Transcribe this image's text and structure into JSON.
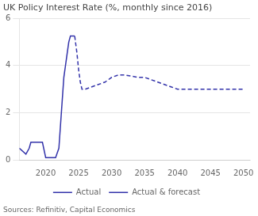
{
  "chart_data": {
    "type": "line",
    "title": "UK Policy Interest Rate (%, monthly since 2016)",
    "annotations": [
      "Sources: Refinitiv, Capital Economics"
    ],
    "xlim": [
      2016,
      2051
    ],
    "xticks": [
      2020,
      2025,
      2030,
      2035,
      2040,
      2045,
      2050
    ],
    "ylim": [
      0,
      6
    ],
    "yticks": [
      0,
      2,
      4,
      6
    ],
    "grid": "y",
    "legend": "bottom",
    "series": [
      {
        "name": "Actual",
        "color": "#3333aa",
        "line_style": "solid",
        "x": [
          2016.0,
          2017.0,
          2017.5,
          2017.75,
          2018.0,
          2018.5,
          2018.75,
          2019.0,
          2019.5,
          2020.0,
          2020.25,
          2021.0,
          2021.5,
          2022.0,
          2022.25,
          2022.5,
          2022.75,
          2023.0,
          2023.25,
          2023.5,
          2023.75,
          2024.0,
          2024.4
        ],
        "values": [
          0.5,
          0.25,
          0.5,
          0.75,
          0.75,
          0.75,
          0.75,
          0.75,
          0.75,
          0.1,
          0.1,
          0.1,
          0.1,
          0.5,
          1.5,
          2.5,
          3.5,
          4.0,
          4.5,
          5.0,
          5.25,
          5.25,
          5.25
        ]
      },
      {
        "name": "Actual & forecast",
        "color": "#3333aa",
        "line_style": "dashed",
        "x": [
          2024.4,
          2024.75,
          2025.0,
          2025.25,
          2025.5,
          2026.0,
          2027.0,
          2028.0,
          2029.0,
          2030.0,
          2031.0,
          2032.0,
          2033.0,
          2034.0,
          2035.0,
          2036.0,
          2037.0,
          2038.0,
          2039.0,
          2040.0,
          2041.0,
          2042.0,
          2043.0,
          2044.0,
          2045.0,
          2046.0,
          2047.0,
          2048.0,
          2049.0,
          2050.0
        ],
        "values": [
          5.25,
          4.5,
          3.8,
          3.3,
          3.0,
          3.0,
          3.1,
          3.2,
          3.3,
          3.5,
          3.6,
          3.6,
          3.55,
          3.5,
          3.5,
          3.4,
          3.3,
          3.2,
          3.1,
          3.0,
          3.0,
          3.0,
          3.0,
          3.0,
          3.0,
          3.0,
          3.0,
          3.0,
          3.0,
          3.0
        ]
      }
    ]
  }
}
